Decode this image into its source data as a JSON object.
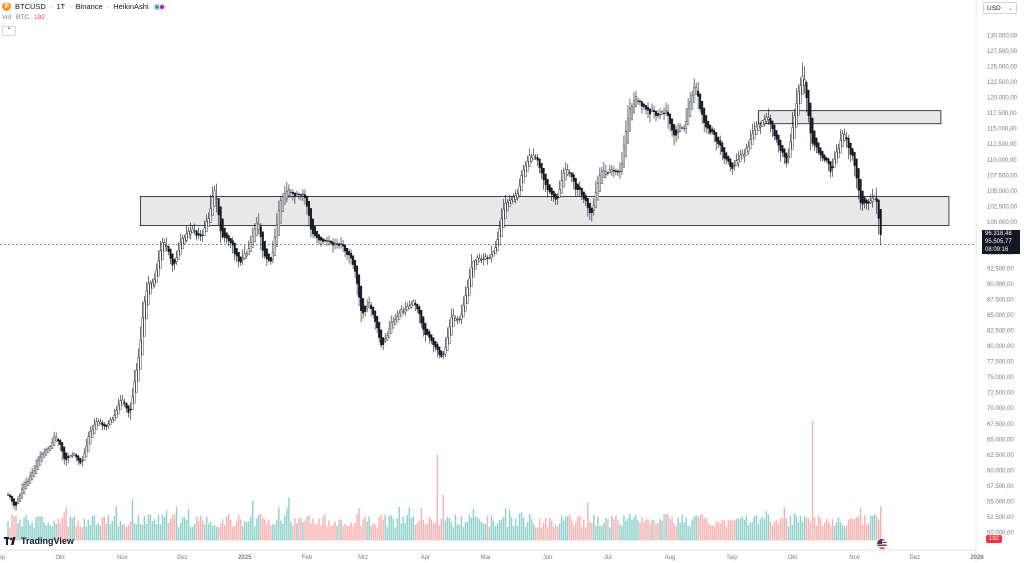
{
  "header": {
    "symbol": "BTCUSD",
    "interval": "1T",
    "exchange": "Binance",
    "chart_style": "HeikinAshi",
    "coin_icon": "bitcoin-icon",
    "separator": "·",
    "vol_label": "Vol",
    "vol_unit": "BTC",
    "vol_value": "192",
    "collapse_glyph": "⌃"
  },
  "price_scale": {
    "currency": "USD",
    "chevron": "⌄",
    "last_price": "96.318,48",
    "second_price": "95.505,77",
    "countdown": "08:09:16",
    "volume_badge": "192"
  },
  "branding": {
    "logo_text": "TradingView"
  },
  "colors": {
    "up": "#131722",
    "down": "#131722",
    "vol_up": "#80cbc4",
    "vol_down": "#f7a9a7",
    "zone_fill": "#e0e0e0",
    "zone_stroke": "#131722",
    "axis_text": "#787b86"
  },
  "chart_data": {
    "type": "candlestick",
    "title": "",
    "style": "HeikinAshi",
    "y_axis": {
      "min": 47500,
      "max": 132500,
      "ticks": [
        "130.000,00",
        "127.500,00",
        "125.000,00",
        "122.500,00",
        "120.000,00",
        "117.500,00",
        "115.000,00",
        "112.500,00",
        "110.000,00",
        "107.500,00",
        "105.000,00",
        "102.500,00",
        "100.000,00",
        "95.000,00",
        "92.500,00",
        "90.000,00",
        "87.500,00",
        "85.000,00",
        "82.500,00",
        "80.000,00",
        "77.500,00",
        "75.000,00",
        "72.500,00",
        "70.000,00",
        "67.500,00",
        "65.000,00",
        "62.500,00",
        "60.000,00",
        "57.500,00",
        "55.000,00",
        "52.500,00",
        "50.000,00"
      ]
    },
    "x_axis": {
      "start": "2024-09-01",
      "end": "2025-12-31",
      "ticks": [
        {
          "label": "Sep",
          "date": "2024-09-01"
        },
        {
          "label": "Okt",
          "date": "2024-10-01"
        },
        {
          "label": "Nov",
          "date": "2024-11-01"
        },
        {
          "label": "Dez",
          "date": "2024-12-01"
        },
        {
          "label": "2025",
          "date": "2025-01-01"
        },
        {
          "label": "Feb",
          "date": "2025-02-01"
        },
        {
          "label": "Mrz",
          "date": "2025-03-01"
        },
        {
          "label": "Apr",
          "date": "2025-04-01"
        },
        {
          "label": "Mai",
          "date": "2025-05-01"
        },
        {
          "label": "Jun",
          "date": "2025-06-01"
        },
        {
          "label": "Jul",
          "date": "2025-07-01"
        },
        {
          "label": "Aug",
          "date": "2025-08-01"
        },
        {
          "label": "Sep",
          "date": "2025-09-01"
        },
        {
          "label": "Okt",
          "date": "2025-10-01"
        },
        {
          "label": "Nov",
          "date": "2025-11-01"
        },
        {
          "label": "Dez",
          "date": "2025-12-01"
        },
        {
          "label": "2026",
          "date": "2026-01-01"
        }
      ]
    },
    "closes": [
      [
        "2024-09-05",
        56000
      ],
      [
        "2024-09-08",
        54200
      ],
      [
        "2024-09-12",
        57500
      ],
      [
        "2024-09-16",
        59000
      ],
      [
        "2024-09-20",
        62000
      ],
      [
        "2024-09-24",
        63500
      ],
      [
        "2024-09-29",
        65500
      ],
      [
        "2024-10-03",
        61500
      ],
      [
        "2024-10-07",
        62800
      ],
      [
        "2024-10-11",
        61000
      ],
      [
        "2024-10-15",
        66000
      ],
      [
        "2024-10-19",
        68000
      ],
      [
        "2024-10-23",
        67000
      ],
      [
        "2024-10-27",
        68500
      ],
      [
        "2024-10-31",
        72000
      ],
      [
        "2024-11-04",
        68500
      ],
      [
        "2024-11-07",
        75500
      ],
      [
        "2024-11-09",
        79000
      ],
      [
        "2024-11-11",
        86500
      ],
      [
        "2024-11-13",
        90000
      ],
      [
        "2024-11-17",
        91000
      ],
      [
        "2024-11-21",
        97000
      ],
      [
        "2024-11-26",
        93000
      ],
      [
        "2024-11-30",
        97000
      ],
      [
        "2024-12-05",
        99000
      ],
      [
        "2024-12-10",
        97000
      ],
      [
        "2024-12-14",
        101500
      ],
      [
        "2024-12-17",
        105500
      ],
      [
        "2024-12-20",
        97500
      ],
      [
        "2024-12-25",
        96500
      ],
      [
        "2024-12-30",
        93500
      ],
      [
        "2025-01-03",
        96000
      ],
      [
        "2025-01-07",
        101000
      ],
      [
        "2025-01-10",
        94500
      ],
      [
        "2025-01-14",
        94000
      ],
      [
        "2025-01-18",
        103500
      ],
      [
        "2025-01-22",
        105500
      ],
      [
        "2025-01-26",
        104000
      ],
      [
        "2025-01-30",
        105000
      ],
      [
        "2025-02-03",
        98500
      ],
      [
        "2025-02-08",
        97000
      ],
      [
        "2025-02-13",
        96500
      ],
      [
        "2025-02-18",
        96000
      ],
      [
        "2025-02-24",
        93000
      ],
      [
        "2025-02-28",
        84500
      ],
      [
        "2025-03-04",
        87000
      ],
      [
        "2025-03-10",
        79500
      ],
      [
        "2025-03-15",
        84000
      ],
      [
        "2025-03-20",
        85500
      ],
      [
        "2025-03-26",
        87500
      ],
      [
        "2025-03-31",
        82500
      ],
      [
        "2025-04-06",
        79500
      ],
      [
        "2025-04-09",
        78000
      ],
      [
        "2025-04-14",
        85000
      ],
      [
        "2025-04-18",
        84500
      ],
      [
        "2025-04-24",
        93500
      ],
      [
        "2025-04-30",
        94500
      ],
      [
        "2025-05-05",
        95000
      ],
      [
        "2025-05-10",
        103000
      ],
      [
        "2025-05-16",
        104000
      ],
      [
        "2025-05-22",
        111000
      ],
      [
        "2025-05-27",
        109500
      ],
      [
        "2025-06-01",
        104500
      ],
      [
        "2025-06-05",
        103500
      ],
      [
        "2025-06-10",
        109000
      ],
      [
        "2025-06-15",
        105500
      ],
      [
        "2025-06-22",
        101500
      ],
      [
        "2025-06-27",
        107500
      ],
      [
        "2025-07-02",
        108500
      ],
      [
        "2025-07-07",
        108500
      ],
      [
        "2025-07-11",
        117500
      ],
      [
        "2025-07-14",
        120500
      ],
      [
        "2025-07-20",
        118000
      ],
      [
        "2025-07-25",
        117500
      ],
      [
        "2025-07-30",
        118000
      ],
      [
        "2025-08-03",
        113500
      ],
      [
        "2025-08-09",
        116500
      ],
      [
        "2025-08-13",
        122000
      ],
      [
        "2025-08-18",
        115500
      ],
      [
        "2025-08-23",
        113500
      ],
      [
        "2025-08-28",
        110500
      ],
      [
        "2025-09-01",
        109000
      ],
      [
        "2025-09-06",
        111000
      ],
      [
        "2025-09-12",
        115500
      ],
      [
        "2025-09-18",
        117000
      ],
      [
        "2025-09-23",
        112500
      ],
      [
        "2025-09-28",
        109500
      ],
      [
        "2025-10-03",
        120500
      ],
      [
        "2025-10-06",
        124000
      ],
      [
        "2025-10-10",
        113000
      ],
      [
        "2025-10-15",
        111000
      ],
      [
        "2025-10-20",
        108500
      ],
      [
        "2025-10-26",
        114500
      ],
      [
        "2025-10-31",
        109500
      ],
      [
        "2025-11-04",
        102500
      ],
      [
        "2025-11-08",
        103000
      ],
      [
        "2025-11-11",
        104500
      ],
      [
        "2025-11-14",
        96300
      ]
    ],
    "volume_peaks": [
      [
        "2025-04-07",
        62500
      ],
      [
        "2025-10-11",
        68000
      ],
      [
        "2025-11-04",
        54000
      ]
    ],
    "zones": [
      {
        "from": "2024-11-10",
        "to": "2025-12-18",
        "low": 99400,
        "high": 104100
      },
      {
        "from": "2025-09-14",
        "to": "2025-12-14",
        "low": 115800,
        "high": 117900
      }
    ],
    "last_price": 96318.48
  }
}
